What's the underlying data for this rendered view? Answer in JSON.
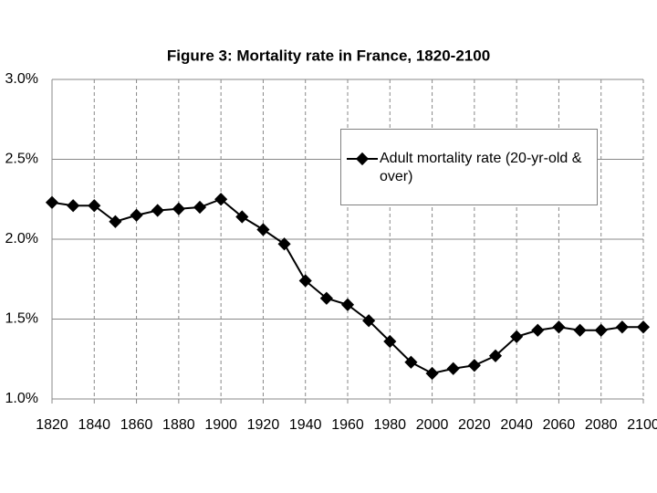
{
  "chart_data": {
    "type": "line",
    "title": "Figure 3: Mortality rate in France, 1820-2100",
    "x": [
      1820,
      1830,
      1840,
      1850,
      1860,
      1870,
      1880,
      1890,
      1900,
      1910,
      1920,
      1930,
      1940,
      1950,
      1960,
      1970,
      1980,
      1990,
      2000,
      2010,
      2020,
      2030,
      2040,
      2050,
      2060,
      2070,
      2080,
      2090,
      2100
    ],
    "series": [
      {
        "name": "Adult mortality rate (20-yr-old & over)",
        "color": "#000000",
        "values": [
          2.23,
          2.21,
          2.21,
          2.11,
          2.15,
          2.18,
          2.19,
          2.2,
          2.25,
          2.14,
          2.06,
          1.97,
          1.74,
          1.63,
          1.59,
          1.49,
          1.36,
          1.23,
          1.16,
          1.19,
          1.21,
          1.27,
          1.39,
          1.43,
          1.45,
          1.43,
          1.43,
          1.45,
          1.45
        ]
      }
    ],
    "xlim": [
      1820,
      2100
    ],
    "xticks": [
      1820,
      1840,
      1860,
      1880,
      1900,
      1920,
      1940,
      1960,
      1980,
      2000,
      2020,
      2040,
      2060,
      2080,
      2100
    ],
    "ylim": [
      1,
      3
    ],
    "yticks": [
      {
        "value": 1,
        "label": "1.0%"
      },
      {
        "value": 1.5,
        "label": "1.5%"
      },
      {
        "value": 2,
        "label": "2.0%"
      },
      {
        "value": 2.5,
        "label": "2.5%"
      },
      {
        "value": 3,
        "label": "3.0%"
      }
    ],
    "grid": true,
    "legend": "upper right"
  }
}
